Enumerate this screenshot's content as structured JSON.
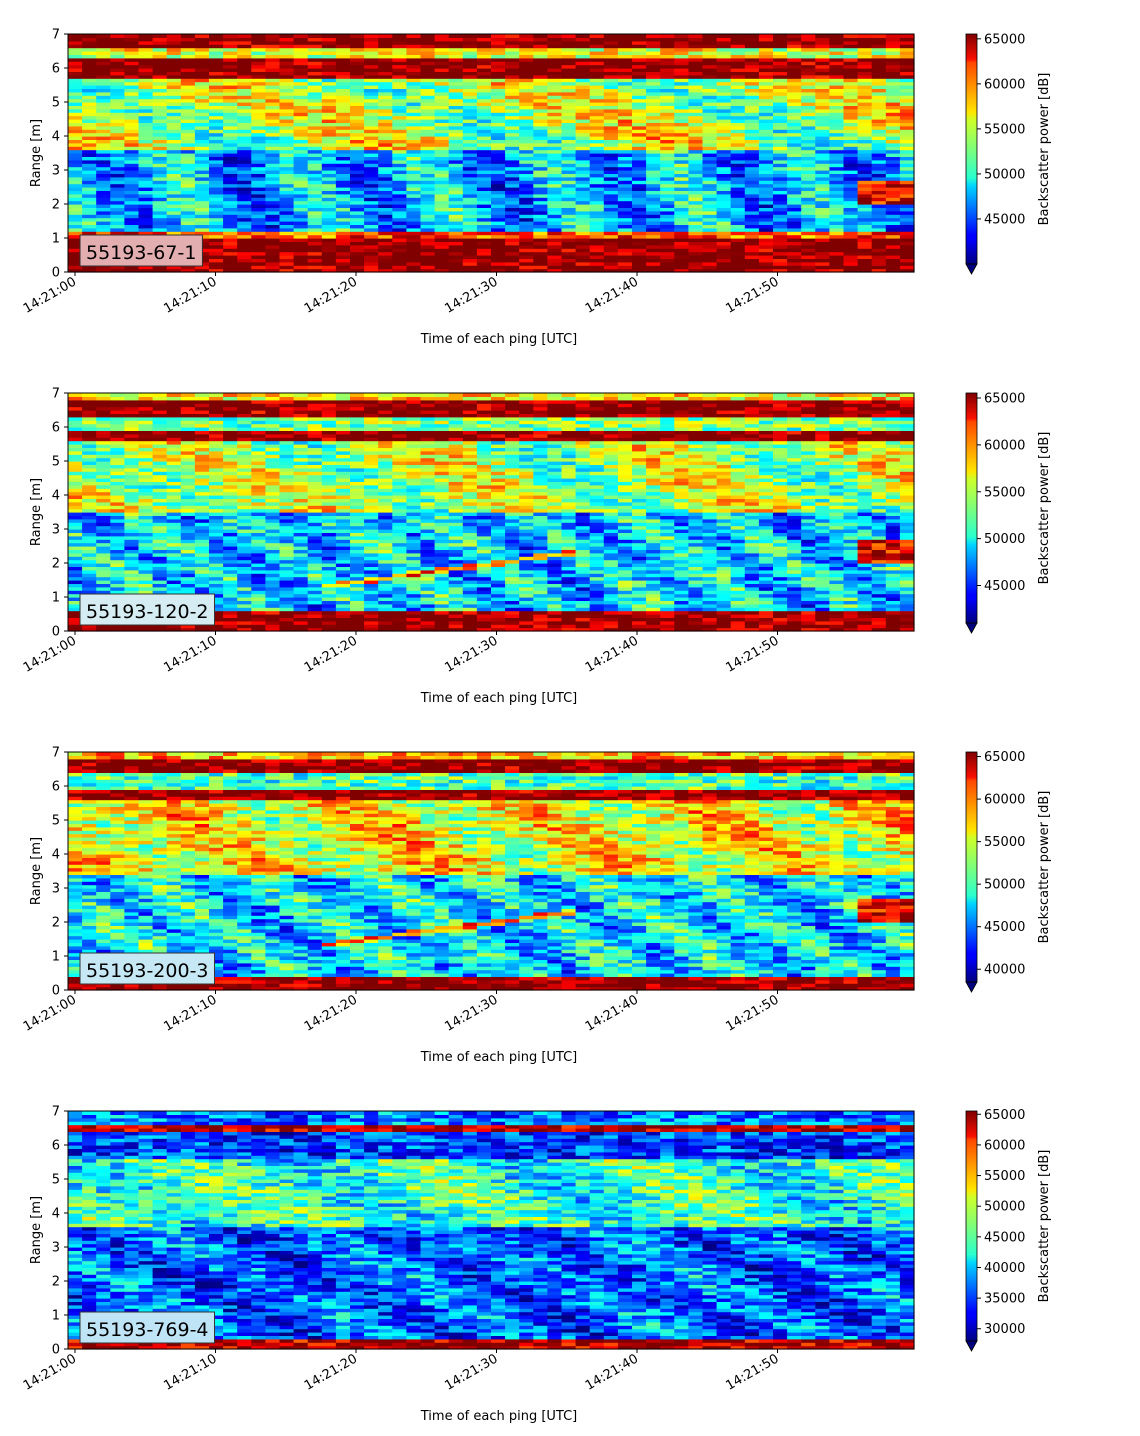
{
  "chart_data": [
    {
      "type": "heatmap",
      "badge": "55193-67-1",
      "badge_color": "#e3aeb0",
      "xlabel": "Time of each ping [UTC]",
      "ylabel": "Range [m]",
      "colorbar_label": "Backscatter power [dB]",
      "colormap": "jet",
      "x_ticks": [
        "14:21:00",
        "14:21:10",
        "14:21:20",
        "14:21:30",
        "14:21:40",
        "14:21:50"
      ],
      "y_ticks": [
        "0",
        "1",
        "2",
        "3",
        "4",
        "5",
        "6",
        "7"
      ],
      "ylim": [
        0,
        7
      ],
      "colorbar_ticks": [
        "45000",
        "50000",
        "55000",
        "60000",
        "65000"
      ],
      "clim": [
        40000,
        65535
      ],
      "description_features": {
        "bright_bands_m": [
          [
            0.2,
            1.1
          ],
          [
            5.7,
            6.3
          ],
          [
            6.6,
            7.0
          ]
        ],
        "mid_band_m": [
          3.6,
          5.6
        ],
        "low_band_m": [
          1.3,
          3.5
        ]
      }
    },
    {
      "type": "heatmap",
      "badge": "55193-120-2",
      "badge_color": "#d4ecf2",
      "xlabel": "Time of each ping [UTC]",
      "ylabel": "Range [m]",
      "colorbar_label": "Backscatter power [dB]",
      "colormap": "jet",
      "x_ticks": [
        "14:21:00",
        "14:21:10",
        "14:21:20",
        "14:21:30",
        "14:21:40",
        "14:21:50"
      ],
      "y_ticks": [
        "0",
        "1",
        "2",
        "3",
        "4",
        "5",
        "6",
        "7"
      ],
      "ylim": [
        0,
        7
      ],
      "colorbar_ticks": [
        "45000",
        "50000",
        "55000",
        "60000",
        "65000"
      ],
      "clim": [
        41000,
        65535
      ]
    },
    {
      "type": "heatmap",
      "badge": "55193-200-3",
      "badge_color": "#c6e8f4",
      "xlabel": "Time of each ping [UTC]",
      "ylabel": "Range [m]",
      "colorbar_label": "Backscatter power [dB]",
      "colormap": "jet",
      "x_ticks": [
        "14:21:00",
        "14:21:10",
        "14:21:20",
        "14:21:30",
        "14:21:40",
        "14:21:50"
      ],
      "y_ticks": [
        "0",
        "1",
        "2",
        "3",
        "4",
        "5",
        "6",
        "7"
      ],
      "ylim": [
        0,
        7
      ],
      "colorbar_ticks": [
        "40000",
        "45000",
        "50000",
        "55000",
        "60000",
        "65000"
      ],
      "clim": [
        38500,
        65535
      ]
    },
    {
      "type": "heatmap",
      "badge": "55193-769-4",
      "badge_color": "#bfe4f6",
      "xlabel": "Time of each ping [UTC]",
      "ylabel": "Range [m]",
      "colorbar_label": "Backscatter power [dB]",
      "colormap": "jet",
      "x_ticks": [
        "14:21:00",
        "14:21:10",
        "14:21:20",
        "14:21:30",
        "14:21:40",
        "14:21:50"
      ],
      "y_ticks": [
        "0",
        "1",
        "2",
        "3",
        "4",
        "5",
        "6",
        "7"
      ],
      "ylim": [
        0,
        7
      ],
      "colorbar_ticks": [
        "30000",
        "35000",
        "40000",
        "45000",
        "50000",
        "55000",
        "60000",
        "65000"
      ],
      "clim": [
        28000,
        65535
      ]
    }
  ]
}
